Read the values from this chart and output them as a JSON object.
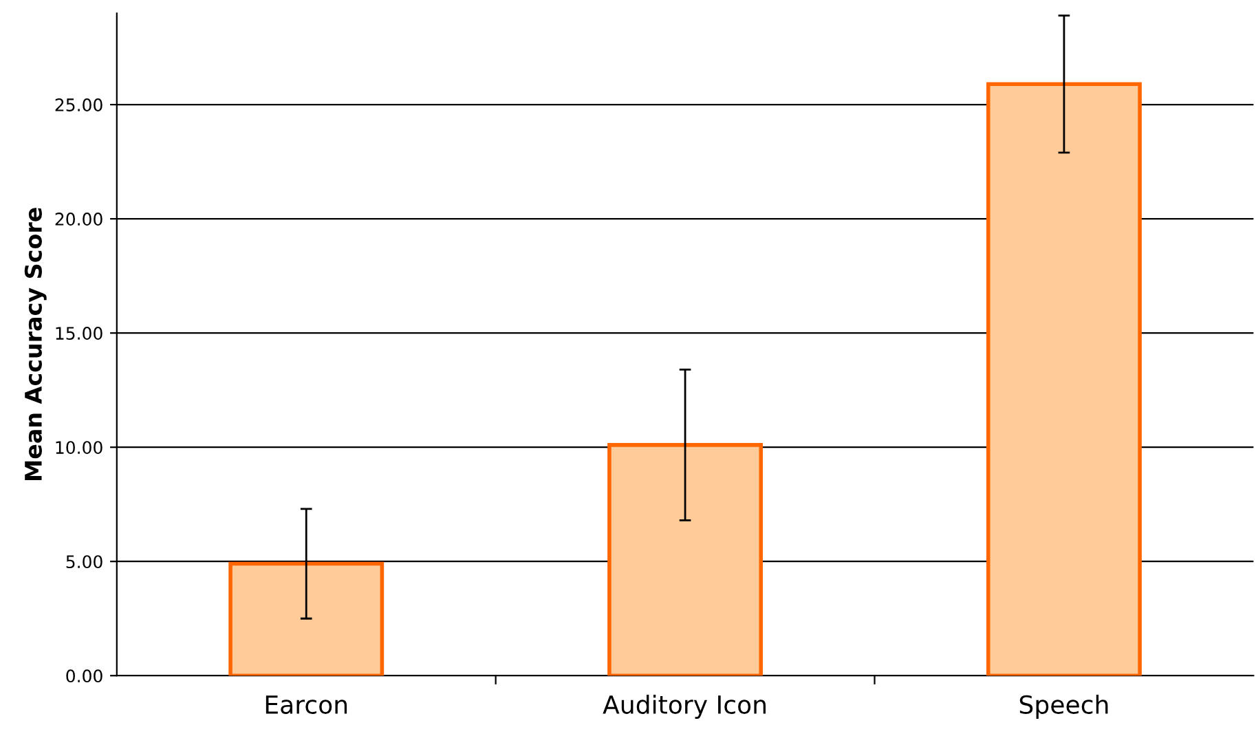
{
  "chart_data": {
    "type": "bar",
    "ylabel": "Mean Accuracy Score",
    "categories": [
      "Earcon",
      "Auditory Icon",
      "Speech"
    ],
    "values": [
      4.9,
      10.1,
      25.9
    ],
    "errors": [
      2.4,
      3.3,
      3.0
    ],
    "color": "#ffcc99",
    "ylim": [
      0,
      29
    ],
    "yticks": [
      {
        "value": 0,
        "label": "0.00"
      },
      {
        "value": 5,
        "label": "5.00"
      },
      {
        "value": 10,
        "label": "10.00"
      },
      {
        "value": 15,
        "label": "15.00"
      },
      {
        "value": 20,
        "label": "20.00"
      },
      {
        "value": 25,
        "label": "25.00"
      }
    ],
    "grid": "y",
    "legend": false
  }
}
